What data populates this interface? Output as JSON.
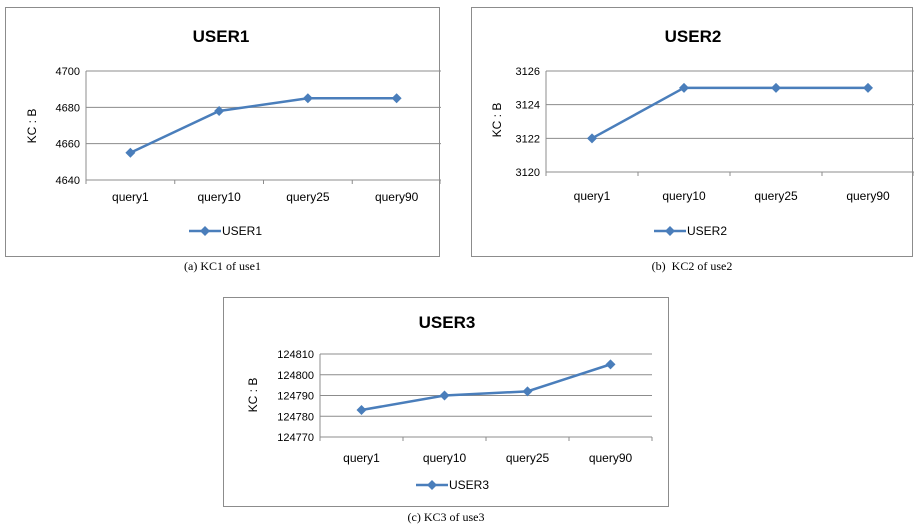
{
  "chart_data": [
    {
      "type": "line",
      "title": "USER1",
      "ylabel": "KC : B",
      "xlabel": "",
      "categories": [
        "query1",
        "query10",
        "query25",
        "query90"
      ],
      "yticks": [
        4640,
        4660,
        4680,
        4700
      ],
      "ylim": [
        4640,
        4700
      ],
      "series": [
        {
          "name": "USER1",
          "values": [
            4655,
            4678,
            4685,
            4685
          ]
        }
      ],
      "grid": true,
      "legend": "bottom",
      "color": "#4a7ebb",
      "caption": "(a) KC1 of use1"
    },
    {
      "type": "line",
      "title": "USER2",
      "ylabel": "KC : B",
      "xlabel": "",
      "categories": [
        "query1",
        "query10",
        "query25",
        "query90"
      ],
      "yticks": [
        3120,
        3122,
        3124,
        3126
      ],
      "ylim": [
        3120,
        3126
      ],
      "series": [
        {
          "name": "USER2",
          "values": [
            3122,
            3125,
            3125,
            3125
          ]
        }
      ],
      "grid": true,
      "legend": "bottom",
      "color": "#4a7ebb",
      "caption": "(b)  KC2 of use2"
    },
    {
      "type": "line",
      "title": "USER3",
      "ylabel": "KC : B",
      "xlabel": "",
      "categories": [
        "query1",
        "query10",
        "query25",
        "query90"
      ],
      "yticks": [
        124770,
        124780,
        124790,
        124800,
        124810
      ],
      "ylim": [
        124770,
        124810
      ],
      "series": [
        {
          "name": "USER3",
          "values": [
            124783,
            124790,
            124792,
            124805
          ]
        }
      ],
      "grid": true,
      "legend": "bottom",
      "color": "#4a7ebb",
      "caption": "(c) KC3 of use3"
    }
  ]
}
